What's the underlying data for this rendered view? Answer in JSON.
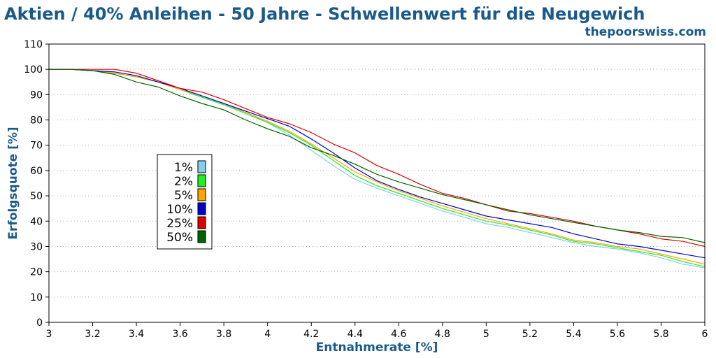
{
  "chart_data": {
    "type": "line",
    "title": "Aktien / 40% Anleihen - 50 Jahre - Schwellenwert für die Neugewich",
    "subtitle": "thepoorswiss.com",
    "xlabel": "Entnahmerate [%]",
    "ylabel": "Erfolgsquote [%]",
    "xlim": [
      3,
      6
    ],
    "ylim": [
      0,
      110
    ],
    "x_ticks": [
      3,
      3.2,
      3.4,
      3.6,
      3.8,
      4,
      4.2,
      4.4,
      4.6,
      4.8,
      5,
      5.2,
      5.4,
      5.6,
      5.8,
      6
    ],
    "x_tick_labels": [
      "3",
      "3.2",
      "3.4",
      "3.6",
      "3.8",
      "4",
      "4.2",
      "4.4",
      "4.6",
      "4.8",
      "5",
      "5.2",
      "5.4",
      "5.6",
      "5.8",
      "6"
    ],
    "y_ticks": [
      0,
      10,
      20,
      30,
      40,
      50,
      60,
      70,
      80,
      90,
      100,
      110
    ],
    "y_tick_labels": [
      "0",
      "10",
      "20",
      "30",
      "40",
      "50",
      "60",
      "70",
      "80",
      "90",
      "100",
      "110"
    ],
    "grid": "horizontal dotted",
    "legend_position": "left",
    "x": [
      3.0,
      3.1,
      3.2,
      3.3,
      3.4,
      3.5,
      3.6,
      3.7,
      3.8,
      3.9,
      4.0,
      4.1,
      4.2,
      4.3,
      4.4,
      4.5,
      4.6,
      4.7,
      4.8,
      4.9,
      5.0,
      5.1,
      5.2,
      5.3,
      5.4,
      5.5,
      5.6,
      5.7,
      5.8,
      5.9,
      6.0
    ],
    "series": [
      {
        "name": "1%",
        "color": "#87ceeb",
        "values": [
          100,
          100,
          99.5,
          98.5,
          97,
          95,
          92,
          89,
          86,
          83,
          79,
          74,
          68,
          62,
          56.5,
          53,
          50,
          47,
          44,
          41.5,
          39,
          37.5,
          35.5,
          33.5,
          31.5,
          30,
          29,
          27.5,
          25.5,
          23,
          21.5
        ]
      },
      {
        "name": "2%",
        "color": "#22ee22",
        "values": [
          100,
          100,
          99.5,
          98.5,
          97,
          95,
          92,
          89,
          86,
          82.5,
          79,
          75,
          70,
          64,
          58,
          54,
          51,
          48,
          45,
          42.5,
          40,
          38.5,
          36.5,
          34.5,
          32,
          31,
          29.5,
          28,
          26.5,
          24,
          22
        ]
      },
      {
        "name": "5%",
        "color": "#ffa500",
        "values": [
          100,
          100,
          99.5,
          98.5,
          97,
          95,
          92,
          89.5,
          86.5,
          83,
          79.5,
          75.5,
          70.5,
          65,
          59.5,
          55.5,
          52,
          49,
          46,
          43.5,
          41,
          39,
          37,
          35,
          32.5,
          31.5,
          30,
          29,
          27,
          25,
          23
        ]
      },
      {
        "name": "10%",
        "color": "#0000cc",
        "values": [
          100,
          100,
          99.5,
          99,
          97.5,
          95,
          92.5,
          89.5,
          86.5,
          83.5,
          80.5,
          77.5,
          72.5,
          67,
          61,
          56,
          52.5,
          49.5,
          47,
          44.5,
          42,
          40.5,
          39,
          37.5,
          35,
          33,
          31,
          30,
          28.5,
          27,
          25.5
        ]
      },
      {
        "name": "25%",
        "color": "#dd0000",
        "values": [
          100,
          100,
          100,
          100,
          98.5,
          95.5,
          92.5,
          91,
          88,
          84.5,
          81,
          78.5,
          75,
          70.5,
          67,
          62,
          58.5,
          54.5,
          51,
          49,
          46.5,
          44,
          43,
          41.5,
          40,
          38,
          36.5,
          35,
          33,
          32,
          30
        ]
      },
      {
        "name": "50%",
        "color": "#006400",
        "values": [
          100,
          100,
          99.5,
          98,
          95,
          93,
          89.5,
          86.5,
          84,
          80,
          76.5,
          73.5,
          69,
          66,
          62.5,
          58.5,
          55.5,
          53,
          50.5,
          48.5,
          46.5,
          44.5,
          42.5,
          41,
          39.5,
          38,
          36.5,
          35.5,
          34,
          33.5,
          31.5
        ]
      }
    ]
  }
}
